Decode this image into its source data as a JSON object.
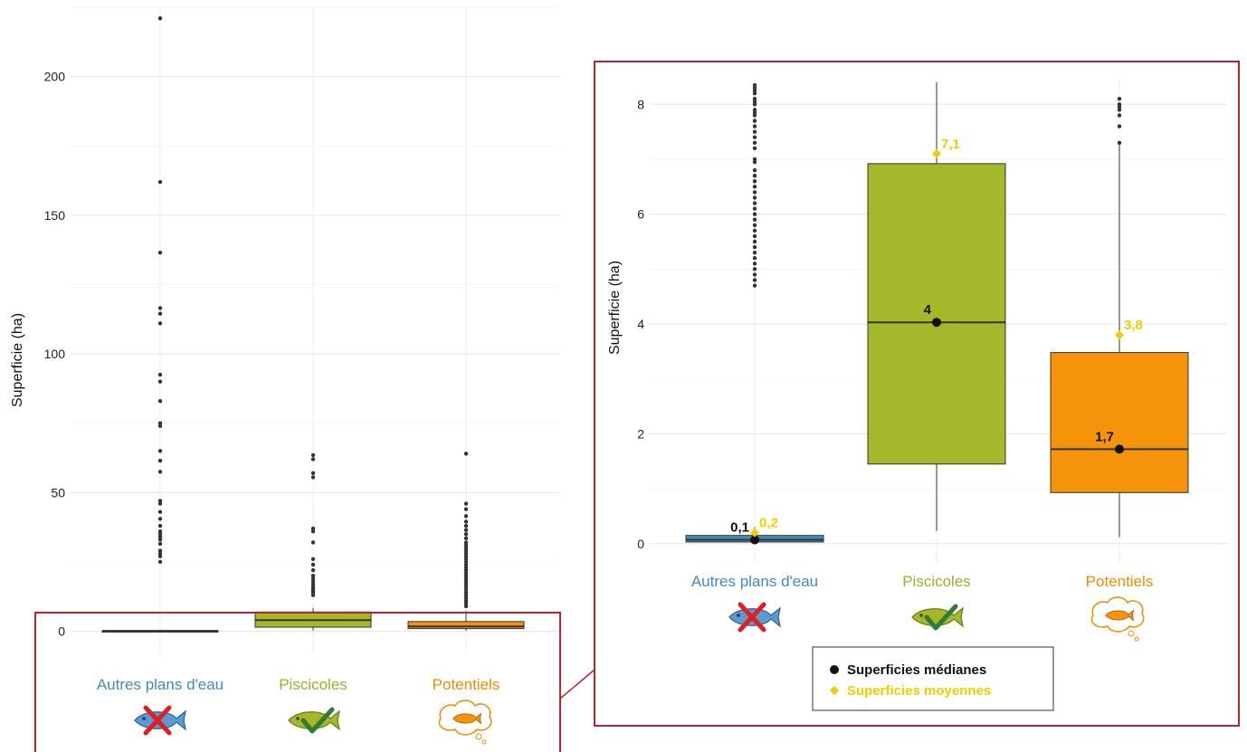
{
  "chart_data": [
    {
      "type": "boxplot",
      "panel": "full",
      "ylabel": "Superficie (ha)",
      "ylim": [
        -8,
        225
      ],
      "yticks": [
        0,
        50,
        100,
        150,
        200
      ],
      "categories": [
        "Autres plans d'eau",
        "Piscicoles",
        "Potentiels"
      ],
      "colors": [
        "#4a8cb8",
        "#a5b82a",
        "#f5930a"
      ],
      "label_colors": [
        "#3f8ac2",
        "#9ab02a",
        "#f08c00"
      ],
      "boxes": [
        {
          "q1": 0.03,
          "median": 0.1,
          "q3": 0.15,
          "whisker_low": 0.0,
          "whisker_high": 0.3
        },
        {
          "q1": 1.45,
          "median": 4.0,
          "q3": 6.92,
          "whisker_low": 0.23,
          "whisker_high": 8.4
        },
        {
          "q1": 0.93,
          "median": 1.7,
          "q3": 3.48,
          "whisker_low": 0.12,
          "whisker_high": 7.3
        }
      ],
      "outliers": [
        [
          221,
          162,
          136.5,
          116.5,
          114.5,
          111,
          92.5,
          90,
          83,
          75,
          74,
          65,
          61.5,
          57.5,
          47,
          46,
          43,
          40.5,
          38,
          36,
          35,
          34,
          33,
          31.5,
          29,
          28,
          27,
          25
        ],
        [
          63.5,
          62,
          57,
          55.5,
          37,
          36,
          32,
          26,
          24,
          22,
          20,
          19,
          18,
          17,
          16,
          15.5,
          15,
          14.5,
          14,
          13
        ],
        [
          64,
          46,
          44,
          41.5,
          39.5,
          38,
          36.5,
          35,
          33.5,
          32,
          31,
          30,
          29,
          28,
          27,
          26,
          25,
          24,
          23,
          22,
          21,
          20,
          19,
          18,
          17,
          16,
          15,
          14,
          13,
          12,
          11,
          10,
          9
        ]
      ]
    },
    {
      "type": "boxplot",
      "panel": "zoom",
      "ylabel": "Superficie (ha)",
      "ylim": [
        -0.35,
        8.45
      ],
      "yticks": [
        0,
        2,
        4,
        6,
        8
      ],
      "categories": [
        "Autres plans d'eau",
        "Piscicoles",
        "Potentiels"
      ],
      "colors": [
        "#4a8cb8",
        "#a5b82a",
        "#f5930a"
      ],
      "label_colors": [
        "#3f8ac2",
        "#9ab02a",
        "#f08c00"
      ],
      "boxes": [
        {
          "q1": 0.03,
          "median": 0.07,
          "q3": 0.15,
          "whisker_low": 0.0,
          "whisker_high": 0.3
        },
        {
          "q1": 1.45,
          "median": 4.03,
          "q3": 6.92,
          "whisker_low": 0.23,
          "whisker_high": 8.4
        },
        {
          "q1": 0.93,
          "median": 1.72,
          "q3": 3.48,
          "whisker_low": 0.12,
          "whisker_high": 7.3
        }
      ],
      "outliers": [
        [
          8.35,
          8.3,
          8.25,
          8.2,
          8.1,
          8.05,
          8.0,
          7.9,
          7.85,
          7.8,
          7.7,
          7.6,
          7.5,
          7.4,
          7.3,
          7.2,
          7.0,
          6.95,
          6.8,
          6.7,
          6.6,
          6.5,
          6.4,
          6.3,
          6.2,
          6.1,
          6.0,
          5.9,
          5.8,
          5.7,
          5.6,
          5.5,
          5.4,
          5.3,
          5.2,
          5.1,
          5.0,
          4.9,
          4.8,
          4.7
        ],
        [],
        [
          8.1,
          8.0,
          7.95,
          7.9,
          7.8,
          7.6,
          7.3
        ]
      ],
      "medians": {
        "values": [
          0.07,
          4.03,
          1.72
        ],
        "labels": [
          "0,1",
          "4",
          "1,7"
        ],
        "color": "#111111"
      },
      "means": {
        "values": [
          0.2,
          7.1,
          3.8
        ],
        "labels": [
          "0,2",
          "7,1",
          "3,8"
        ],
        "color": "#f2cc00"
      },
      "legend": {
        "position": "bottom-center",
        "items": [
          {
            "label": "Superficies médianes",
            "color": "#111111"
          },
          {
            "label": "Superficies moyennes",
            "color": "#f2cc00"
          }
        ]
      }
    }
  ],
  "icon_legend": [
    {
      "name": "crossed-fish-icon",
      "meaning": "Autres plans d'eau"
    },
    {
      "name": "checked-fish-icon",
      "meaning": "Piscicoles"
    },
    {
      "name": "dream-fish-icon",
      "meaning": "Potentiels"
    }
  ],
  "colors": {
    "highlight_frame": "#b5272d",
    "grid": "#ececec"
  }
}
